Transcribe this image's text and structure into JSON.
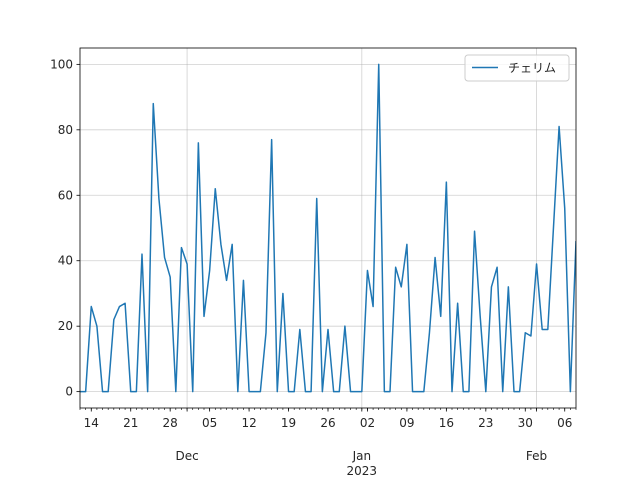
{
  "chart_data": {
    "type": "line",
    "title": "",
    "xlabel": "",
    "ylabel": "",
    "ylim": [
      -5,
      105
    ],
    "xlim": [
      "2022-11-12",
      "2023-02-08"
    ],
    "grid": true,
    "legend_position": "top-right",
    "series": [
      {
        "name": "チェリム",
        "color": "#1f77b4",
        "x": [
          "2022-11-12",
          "2022-11-13",
          "2022-11-14",
          "2022-11-15",
          "2022-11-16",
          "2022-11-17",
          "2022-11-18",
          "2022-11-19",
          "2022-11-20",
          "2022-11-21",
          "2022-11-22",
          "2022-11-23",
          "2022-11-24",
          "2022-11-25",
          "2022-11-26",
          "2022-11-27",
          "2022-11-28",
          "2022-11-29",
          "2022-11-30",
          "2022-12-01",
          "2022-12-02",
          "2022-12-03",
          "2022-12-04",
          "2022-12-05",
          "2022-12-06",
          "2022-12-07",
          "2022-12-08",
          "2022-12-09",
          "2022-12-10",
          "2022-12-11",
          "2022-12-12",
          "2022-12-13",
          "2022-12-14",
          "2022-12-15",
          "2022-12-16",
          "2022-12-17",
          "2022-12-18",
          "2022-12-19",
          "2022-12-20",
          "2022-12-21",
          "2022-12-22",
          "2022-12-23",
          "2022-12-24",
          "2022-12-25",
          "2022-12-26",
          "2022-12-27",
          "2022-12-28",
          "2022-12-29",
          "2022-12-30",
          "2022-12-31",
          "2023-01-01",
          "2023-01-02",
          "2023-01-03",
          "2023-01-04",
          "2023-01-05",
          "2023-01-06",
          "2023-01-07",
          "2023-01-08",
          "2023-01-09",
          "2023-01-10",
          "2023-01-11",
          "2023-01-12",
          "2023-01-13",
          "2023-01-14",
          "2023-01-15",
          "2023-01-16",
          "2023-01-17",
          "2023-01-18",
          "2023-01-19",
          "2023-01-20",
          "2023-01-21",
          "2023-01-22",
          "2023-01-23",
          "2023-01-24",
          "2023-01-25",
          "2023-01-26",
          "2023-01-27",
          "2023-01-28",
          "2023-01-29",
          "2023-01-30",
          "2023-01-31",
          "2023-02-01",
          "2023-02-02",
          "2023-02-03",
          "2023-02-04",
          "2023-02-05",
          "2023-02-06",
          "2023-02-07",
          "2023-02-08"
        ],
        "values": [
          0,
          0,
          26,
          20,
          0,
          0,
          22,
          26,
          27,
          0,
          0,
          42,
          0,
          88,
          59,
          41,
          35,
          0,
          44,
          39,
          0,
          76,
          23,
          37,
          62,
          45,
          34,
          45,
          0,
          34,
          0,
          0,
          0,
          18,
          77,
          0,
          30,
          0,
          0,
          19,
          0,
          0,
          59,
          0,
          19,
          0,
          0,
          20,
          0,
          0,
          0,
          37,
          26,
          100,
          0,
          0,
          38,
          32,
          45,
          0,
          0,
          0,
          18,
          41,
          23,
          64,
          0,
          27,
          0,
          0,
          49,
          23,
          0,
          32,
          38,
          0,
          32,
          0,
          0,
          18,
          17,
          39,
          19,
          19,
          50,
          81,
          56,
          0,
          46
        ]
      }
    ],
    "yticks": [
      0,
      20,
      40,
      60,
      80,
      100
    ],
    "xticks": [
      {
        "date": "2022-11-14",
        "label": "14"
      },
      {
        "date": "2022-11-21",
        "label": "21"
      },
      {
        "date": "2022-11-28",
        "label": "28"
      },
      {
        "date": "2022-12-05",
        "label": "05"
      },
      {
        "date": "2022-12-12",
        "label": "12"
      },
      {
        "date": "2022-12-19",
        "label": "19"
      },
      {
        "date": "2022-12-26",
        "label": "26"
      },
      {
        "date": "2023-01-02",
        "label": "02"
      },
      {
        "date": "2023-01-09",
        "label": "09"
      },
      {
        "date": "2023-01-16",
        "label": "16"
      },
      {
        "date": "2023-01-23",
        "label": "23"
      },
      {
        "date": "2023-01-30",
        "label": "30"
      },
      {
        "date": "2023-02-06",
        "label": "06"
      }
    ],
    "month_ticks": [
      {
        "date": "2022-12-01",
        "label": "Dec",
        "year": ""
      },
      {
        "date": "2023-01-01",
        "label": "Jan",
        "year": "2023"
      },
      {
        "date": "2023-02-01",
        "label": "Feb",
        "year": ""
      }
    ]
  }
}
